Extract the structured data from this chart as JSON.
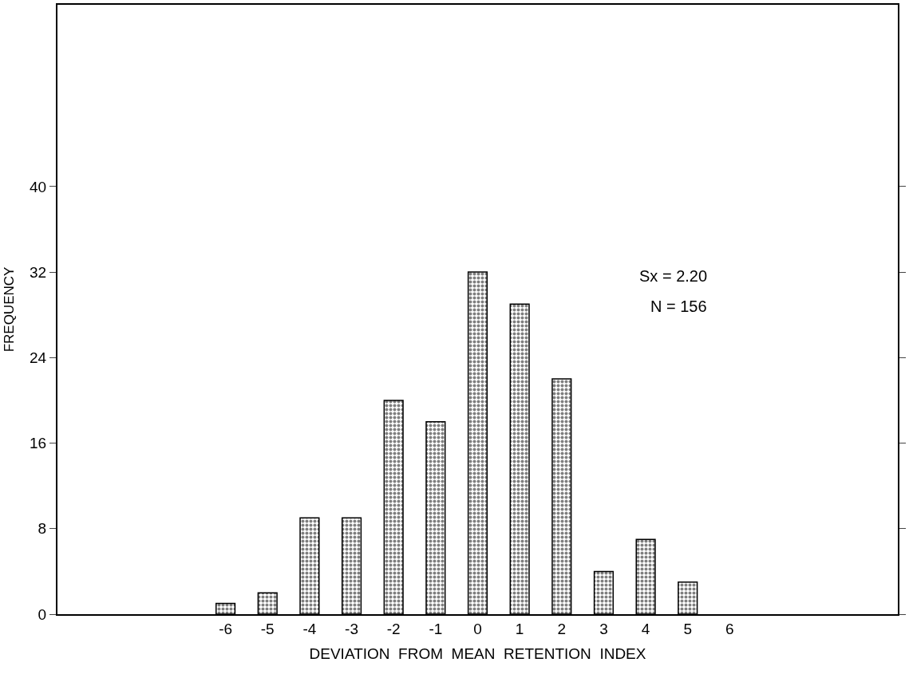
{
  "chart_data": {
    "type": "bar",
    "xlabel": "DEVIATION  FROM  MEAN  RETENTION  INDEX",
    "ylabel": "FREQUENCY",
    "x": [
      -6,
      -5,
      -4,
      -3,
      -2,
      -1,
      0,
      1,
      2,
      3,
      4,
      5
    ],
    "values": [
      1,
      2,
      9,
      9,
      20,
      18,
      32,
      29,
      22,
      4,
      7,
      3
    ],
    "color": "#000000",
    "xlim": [
      -10,
      10
    ],
    "xticks": [
      -6,
      -5,
      -4,
      -3,
      -2,
      -1,
      0,
      1,
      2,
      3,
      4,
      5,
      6
    ],
    "ylim": [
      0,
      57
    ],
    "yticks": [
      0,
      8,
      16,
      24,
      32,
      40
    ],
    "annotations": [
      "Sx = 2.20",
      "N = 156"
    ]
  }
}
